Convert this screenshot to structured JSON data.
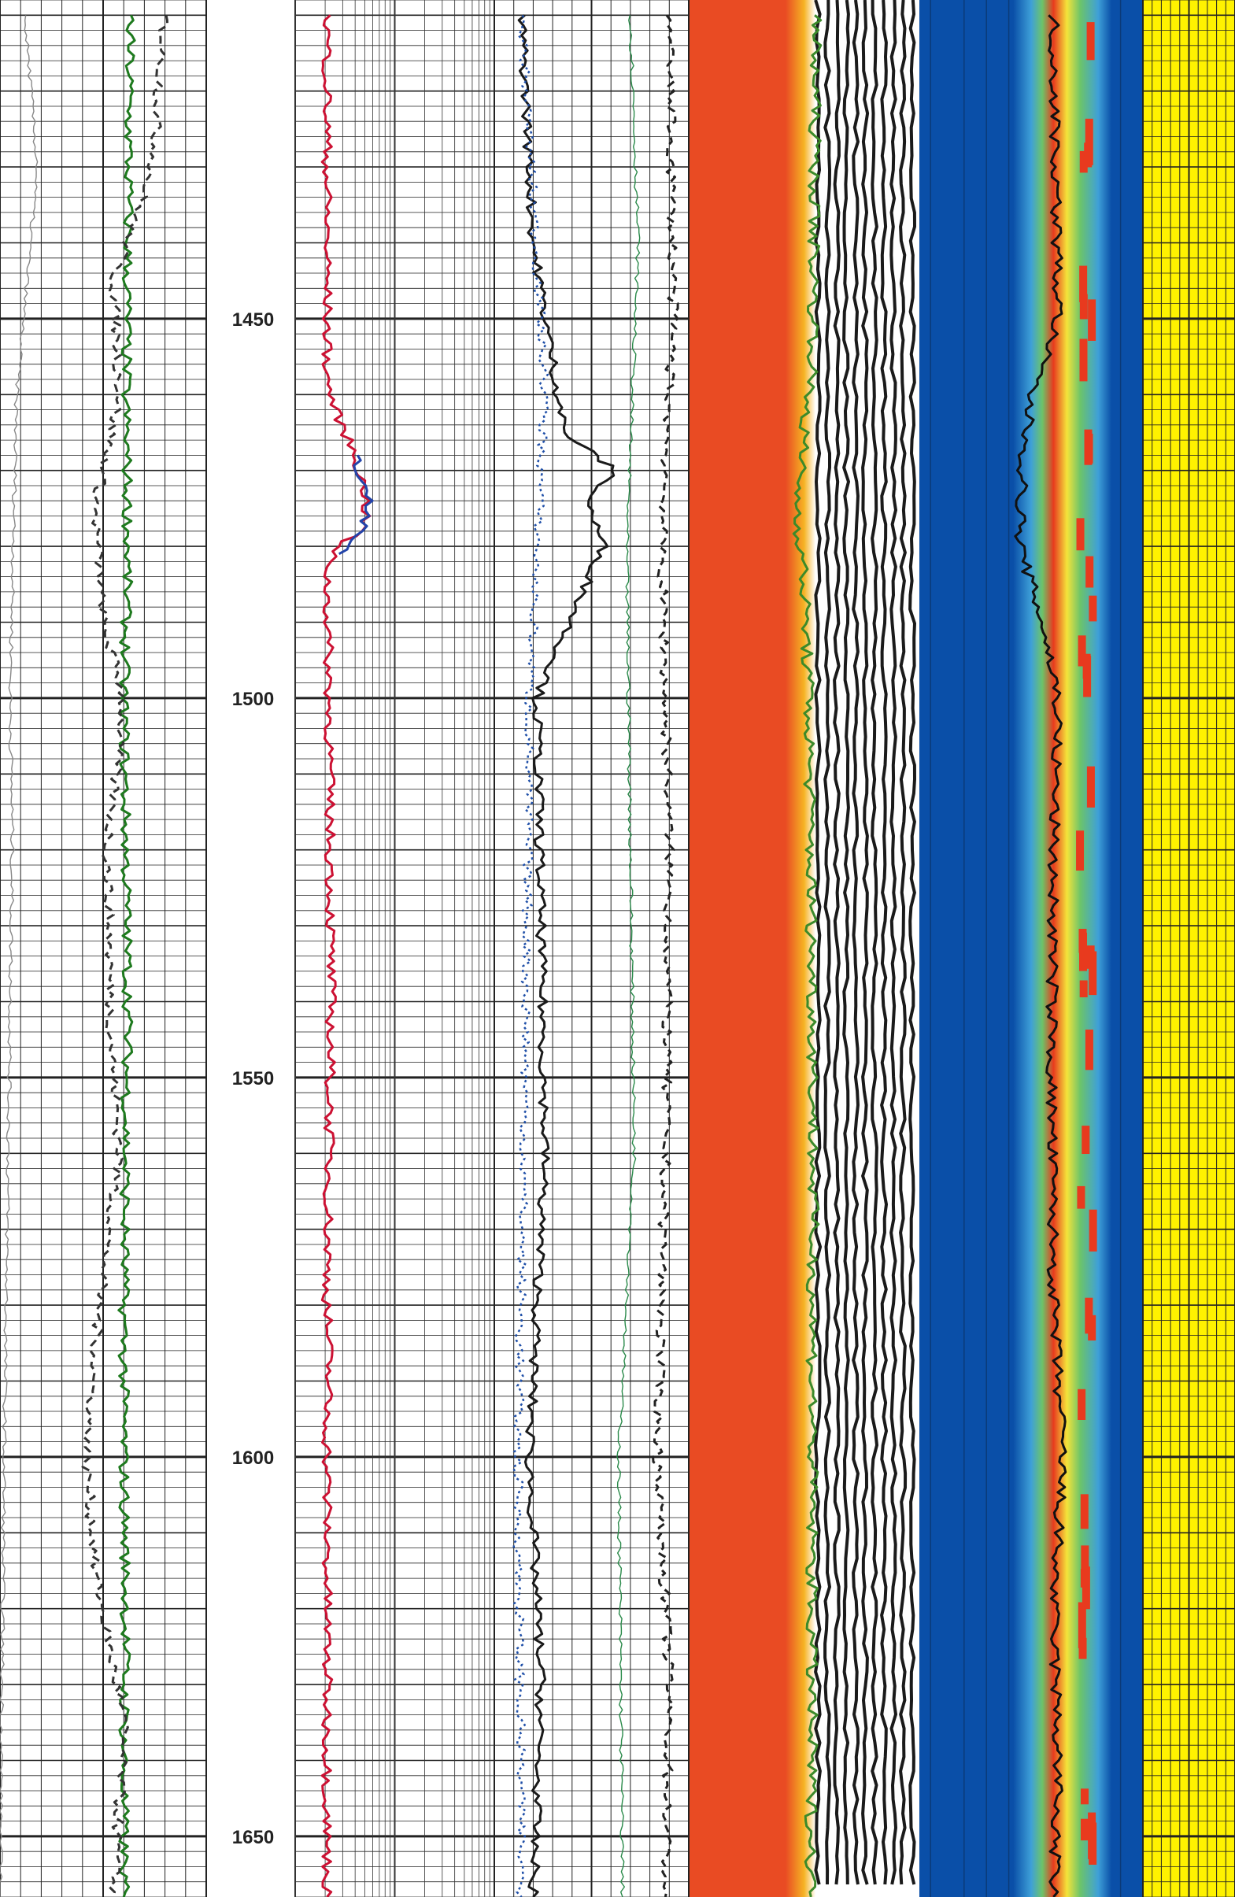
{
  "chart_data": {
    "type": "line",
    "depth_axis": {
      "title": "",
      "min": 1408,
      "max": 1658,
      "tick_labels": [
        "1450",
        "1500",
        "1550",
        "1600",
        "1650"
      ],
      "tick_values": [
        1450,
        1500,
        1550,
        1600,
        1650
      ],
      "orientation": "vertical, depth increasing downward",
      "grid": true
    },
    "tracks": [
      {
        "id": "track1",
        "scale": "linear",
        "grid": true,
        "curves": [
          {
            "name": "",
            "color": "#1e7a1e",
            "style": "solid",
            "depth": [
              1410,
              1440,
              1460,
              1480,
              1500,
              1520,
              1540,
              1560,
              1580,
              1600,
              1620,
              1640,
              1658
            ],
            "value": [
              0.63,
              0.62,
              0.61,
              0.62,
              0.6,
              0.61,
              0.62,
              0.61,
              0.6,
              0.6,
              0.61,
              0.6,
              0.6
            ]
          },
          {
            "name": "",
            "color": "#333333",
            "style": "dashed",
            "depth": [
              1410,
              1430,
              1445,
              1460,
              1475,
              1490,
              1500,
              1520,
              1545,
              1560,
              1580,
              1600,
              1615,
              1635,
              1658
            ],
            "value": [
              0.8,
              0.74,
              0.55,
              0.58,
              0.46,
              0.5,
              0.6,
              0.52,
              0.54,
              0.58,
              0.48,
              0.42,
              0.46,
              0.6,
              0.55
            ]
          },
          {
            "name": "",
            "color": "#888888",
            "style": "thin",
            "depth": [
              1410,
              1430,
              1460,
              1500,
              1520,
              1600,
              1658
            ],
            "value": [
              0.12,
              0.18,
              0.08,
              0.05,
              0.06,
              0.02,
              0.0
            ]
          }
        ]
      },
      {
        "id": "track2",
        "scale": "logarithmic",
        "grid": true,
        "curves": [
          {
            "name": "",
            "color": "#cc1133",
            "style": "solid",
            "depth": [
              1410,
              1440,
              1458,
              1462,
              1468,
              1474,
              1478,
              1480,
              1484,
              1500,
              1540,
              1580,
              1590,
              1593,
              1600,
              1640,
              1658
            ],
            "value": [
              0.16,
              0.16,
              0.16,
              0.2,
              0.3,
              0.36,
              0.34,
              0.2,
              0.16,
              0.17,
              0.18,
              0.16,
              0.17,
              0.16,
              0.16,
              0.16,
              0.16
            ]
          },
          {
            "name": "",
            "color": "#2244aa",
            "style": "solid",
            "depth": [
              1468,
              1474,
              1478,
              1481
            ],
            "value": [
              0.3,
              0.37,
              0.33,
              0.22
            ]
          }
        ]
      },
      {
        "id": "track3",
        "scale": "linear",
        "grid": true,
        "curves": [
          {
            "name": "",
            "color": "#1a1a1a",
            "style": "solid",
            "depth": [
              1410,
              1440,
              1465,
              1470,
              1474,
              1480,
              1500,
              1530,
              1560,
              1590,
              1600,
              1630,
              1658
            ],
            "value": [
              0.14,
              0.2,
              0.36,
              0.62,
              0.48,
              0.56,
              0.22,
              0.24,
              0.26,
              0.2,
              0.18,
              0.24,
              0.2
            ]
          },
          {
            "name": "",
            "color": "#1f4fa8",
            "style": "dotted",
            "depth": [
              1410,
              1460,
              1500,
              1550,
              1600,
              1658
            ],
            "value": [
              0.14,
              0.26,
              0.18,
              0.16,
              0.12,
              0.14
            ]
          },
          {
            "name": "",
            "color": "#2a8a4a",
            "style": "thin",
            "depth": [
              1410,
              1440,
              1480,
              1520,
              1560,
              1600,
              1658
            ],
            "value": [
              0.7,
              0.74,
              0.68,
              0.7,
              0.72,
              0.64,
              0.66
            ]
          },
          {
            "name": "",
            "color": "#222222",
            "style": "dashed",
            "depth": [
              1410,
              1450,
              1480,
              1520,
              1560,
              1600,
              1630,
              1658
            ],
            "value": [
              0.9,
              0.92,
              0.86,
              0.9,
              0.88,
              0.84,
              0.9,
              0.88
            ]
          }
        ]
      },
      {
        "id": "track4",
        "type": "waveform-image",
        "palette": [
          "#e94b23",
          "#f6b323",
          "#ffffff",
          "#1a1a1a"
        ],
        "curves": [
          {
            "name": "",
            "color": "#3c8a2a",
            "style": "solid",
            "depth": [
              1410,
              1455,
              1465,
              1475,
              1485,
              1500,
              1550,
              1658
            ],
            "value": [
              0.55,
              0.54,
              0.5,
              0.47,
              0.5,
              0.52,
              0.54,
              0.53
            ]
          }
        ]
      },
      {
        "id": "track5",
        "type": "heatmap-image",
        "palette": [
          "#0a4fa8",
          "#3ea0d8",
          "#6cc46a",
          "#f4e43a",
          "#e83a1e"
        ],
        "curves": [
          {
            "name": "",
            "color": "#111111",
            "style": "solid",
            "depth": [
              1410,
              1450,
              1460,
              1470,
              1480,
              1490,
              1500,
              1520,
              1550,
              1580,
              1600,
              1620,
              1640,
              1658
            ],
            "value": [
              0.6,
              0.62,
              0.5,
              0.46,
              0.45,
              0.55,
              0.62,
              0.6,
              0.59,
              0.6,
              0.64,
              0.6,
              0.62,
              0.6
            ]
          }
        ]
      },
      {
        "id": "track6",
        "type": "fill",
        "fill_color": "#fff200",
        "grid": true
      }
    ]
  }
}
